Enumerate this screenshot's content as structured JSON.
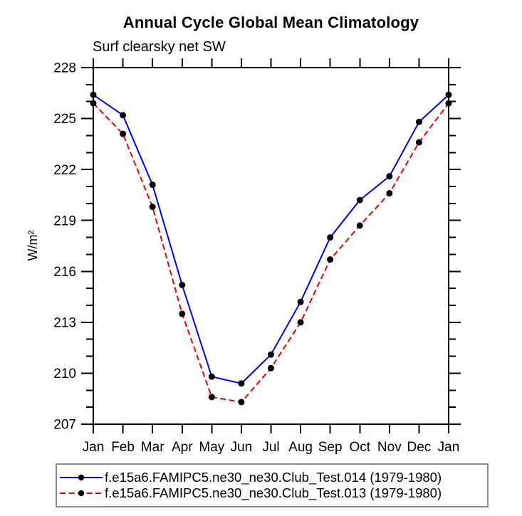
{
  "chart_data": {
    "type": "line",
    "title": "Annual Cycle Global Mean Climatology",
    "subtitle": "Surf clearsky net SW",
    "ylabel": "W/m²",
    "xlabel": "",
    "categories": [
      "Jan",
      "Feb",
      "Mar",
      "Apr",
      "May",
      "Jun",
      "Jul",
      "Aug",
      "Sep",
      "Oct",
      "Nov",
      "Dec",
      "Jan"
    ],
    "series": [
      {
        "name": "f.e15a6.FAMIPC5.ne30_ne30.Club_Test.014 (1979-1980)",
        "color": "#0000ee",
        "dash": "",
        "values": [
          226.4,
          225.2,
          221.1,
          215.2,
          209.8,
          209.4,
          211.1,
          214.2,
          218.0,
          220.2,
          221.6,
          224.8,
          226.4
        ]
      },
      {
        "name": "f.e15a6.FAMIPC5.ne30_ne30.Club_Test.013 (1979-1980)",
        "color": "#ee0000",
        "dash": "8 4.5",
        "values": [
          225.9,
          224.1,
          219.8,
          213.5,
          208.6,
          208.3,
          210.3,
          213.0,
          216.7,
          218.7,
          220.6,
          223.6,
          225.9
        ]
      }
    ],
    "ylim": [
      207,
      228
    ],
    "y_tick_labels": [
      207,
      210,
      213,
      216,
      219,
      222,
      225,
      228
    ],
    "y_minor_step": 1,
    "marker": {
      "shape": "circle",
      "color": "#000000",
      "radius": 4.5
    },
    "axis_color": "#000000",
    "grid": false,
    "legend_position": "bottom"
  }
}
